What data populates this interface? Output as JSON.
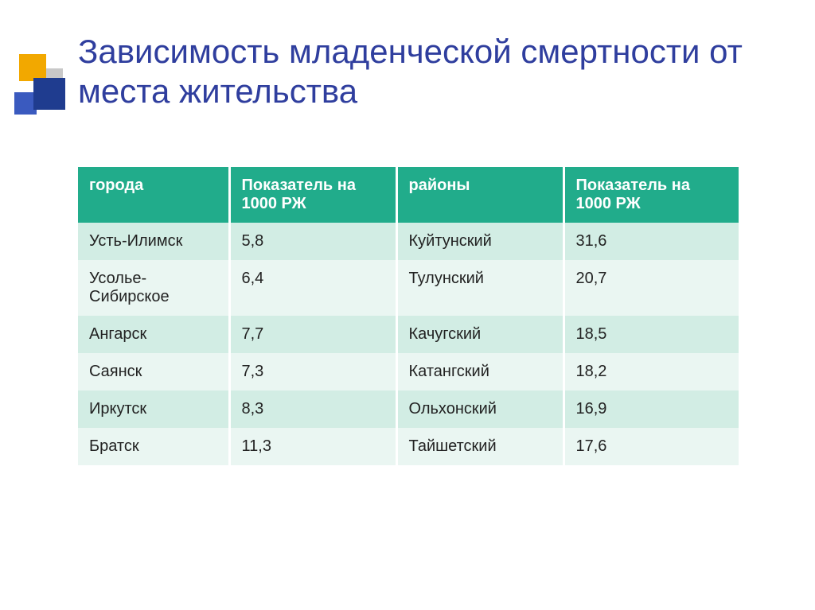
{
  "title": "Зависимость младенческой смертности от места жительства",
  "table": {
    "columns": [
      "города",
      "Показатель на 1000 РЖ",
      "районы",
      "Показатель на 1000 РЖ"
    ],
    "rows": [
      [
        "Усть-Илимск",
        "5,8",
        "Куйтунский",
        "31,6"
      ],
      [
        "Усолье-Сибирское",
        "6,4",
        "Тулунский",
        "20,7"
      ],
      [
        "Ангарск",
        "7,7",
        "Качугский",
        "18,5"
      ],
      [
        "Саянск",
        "7,3",
        "Катангский",
        "18,2"
      ],
      [
        "Иркутск",
        "8,3",
        "Ольхонский",
        "16,9"
      ],
      [
        "Братск",
        "11,3",
        "Тайшетский",
        "17,6"
      ]
    ],
    "header_bg": "#21ac8b",
    "header_color": "#ffffff",
    "row_odd_bg": "#d2ede4",
    "row_even_bg": "#eaf6f2",
    "font_size_header": 20,
    "font_size_cell": 20
  },
  "title_color": "#2f3e9e",
  "title_fontsize": 42,
  "decoration": {
    "orange": "#f2a800",
    "blue_dark": "#1f3c8f",
    "blue_light": "#3a5abf",
    "gray": "#c8c8c8"
  }
}
